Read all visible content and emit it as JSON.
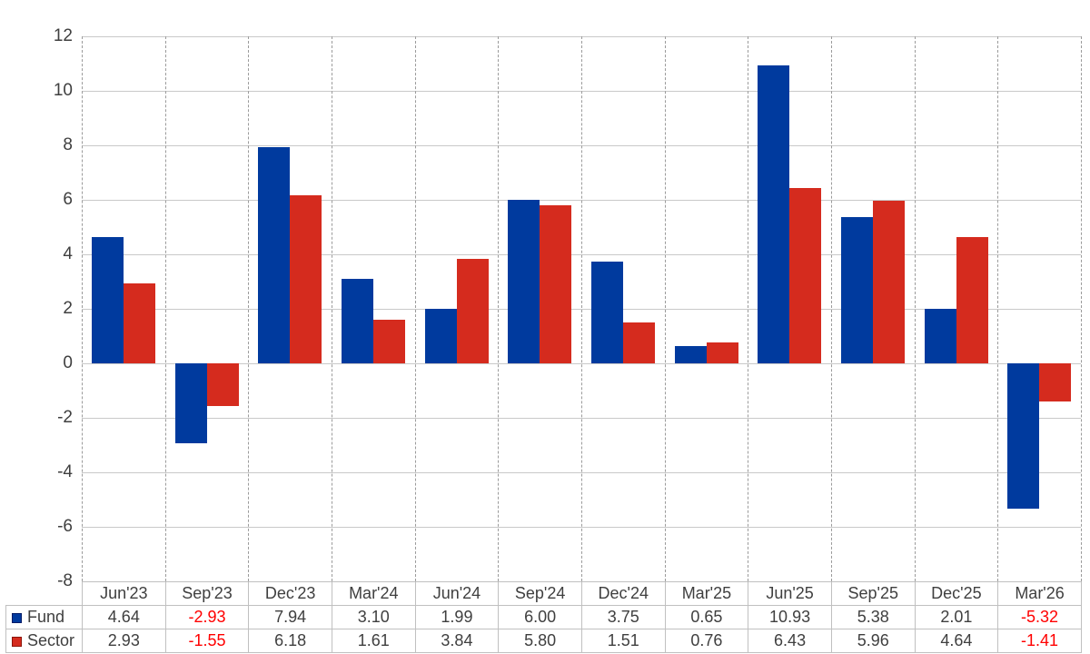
{
  "chart_data": {
    "type": "bar",
    "categories": [
      "Jun'23",
      "Sep'23",
      "Dec'23",
      "Mar'24",
      "Jun'24",
      "Sep'24",
      "Dec'24",
      "Mar'25",
      "Jun'25",
      "Sep'25",
      "Dec'25",
      "Mar'26"
    ],
    "series": [
      {
        "name": "Fund",
        "color": "#003a9e",
        "swatch_border": "#001a66",
        "values": [
          4.64,
          -2.93,
          7.94,
          3.1,
          1.99,
          6.0,
          3.75,
          0.65,
          10.93,
          5.38,
          2.01,
          -5.32
        ]
      },
      {
        "name": "Sector",
        "color": "#d52b1e",
        "swatch_border": "#8c1409",
        "values": [
          2.93,
          -1.55,
          6.18,
          1.61,
          3.84,
          5.8,
          1.51,
          0.76,
          6.43,
          5.96,
          4.64,
          -1.41
        ]
      }
    ],
    "title": "",
    "xlabel": "",
    "ylabel": "",
    "ylim": [
      -8,
      12
    ],
    "ytick_step": 2,
    "yticks": [
      12,
      10,
      8,
      6,
      4,
      2,
      0,
      -2,
      -4,
      -6,
      -8
    ],
    "grid": {
      "horizontal": "solid",
      "vertical": "dashed"
    },
    "legend_position": "table-left-column",
    "value_format_decimals": 2,
    "negative_value_color": "#ff0000"
  },
  "style_colors": {
    "background": "#ffffff",
    "gridline_horizontal": "#c9c9c9",
    "gridline_vertical_dashed": "#9b9b9b",
    "table_border": "#c0c0c0",
    "text": "#3f3f3f"
  }
}
